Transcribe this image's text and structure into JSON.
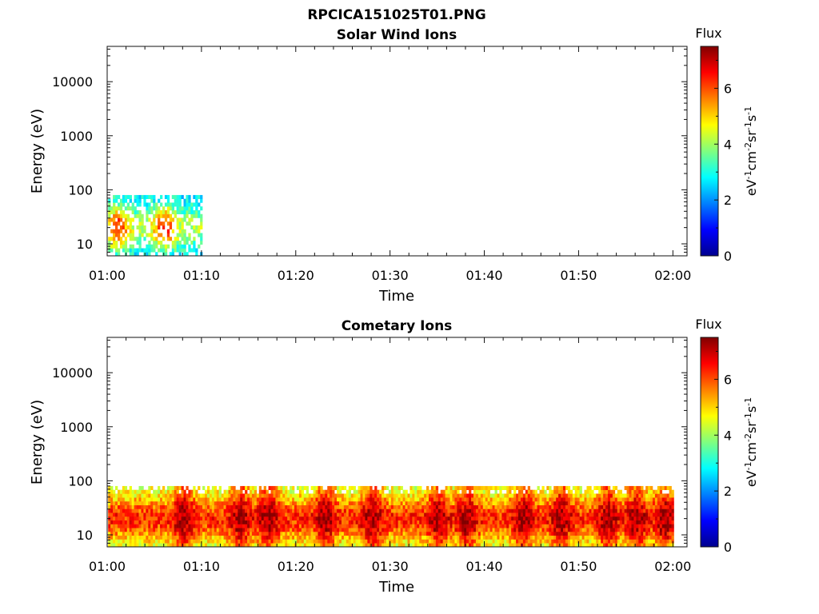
{
  "chart_data": [
    {
      "type": "heatmap",
      "title": "RPCICA151025T01.PNG",
      "subtitle": "Solar Wind Ions",
      "xlabel": "Time",
      "ylabel": "Energy (eV)",
      "x_ticks": [
        "01:00",
        "01:10",
        "01:20",
        "01:30",
        "01:40",
        "01:50",
        "02:00"
      ],
      "x_range_minutes": [
        0,
        61.5
      ],
      "y_scale": "log",
      "y_ticks": [
        "10",
        "100",
        "1000",
        "10000"
      ],
      "y_range": [
        6,
        45000
      ],
      "grid": false,
      "colorbar": {
        "label": "Flux",
        "unit": "eV-1cm-2sr-1s-1",
        "ticks": [
          "0",
          "2",
          "4",
          "6"
        ],
        "range": [
          0,
          7.5
        ],
        "colormap": "jet"
      },
      "data_extent": {
        "time_start": "01:00",
        "time_end": "01:10",
        "energy_min_eV": 6,
        "energy_max_eV": 80,
        "peak_flux": 6.3,
        "peak_times": [
          "01:01",
          "01:06"
        ],
        "peak_energy_eV": 20
      }
    },
    {
      "type": "heatmap",
      "title": "Cometary Ions",
      "xlabel": "Time",
      "ylabel": "Energy (eV)",
      "x_ticks": [
        "01:00",
        "01:10",
        "01:20",
        "01:30",
        "01:40",
        "01:50",
        "02:00"
      ],
      "x_range_minutes": [
        0,
        61.5
      ],
      "y_scale": "log",
      "y_ticks": [
        "10",
        "100",
        "1000",
        "10000"
      ],
      "y_range": [
        6,
        45000
      ],
      "grid": false,
      "colorbar": {
        "label": "Flux",
        "unit": "eV-1cm-2sr-1s-1",
        "ticks": [
          "0",
          "2",
          "4",
          "6"
        ],
        "range": [
          0,
          7.5
        ],
        "colormap": "jet"
      },
      "data_extent": {
        "time_start": "01:00",
        "time_end": "02:00",
        "energy_min_eV": 6,
        "energy_max_eV": 80,
        "peak_flux": 7.3,
        "peak_times": [
          "01:08",
          "01:14",
          "01:17",
          "01:23",
          "01:28",
          "01:35",
          "01:38",
          "01:44",
          "01:48",
          "01:53",
          "01:56",
          "01:59"
        ],
        "peak_energy_eV": 20
      }
    }
  ]
}
